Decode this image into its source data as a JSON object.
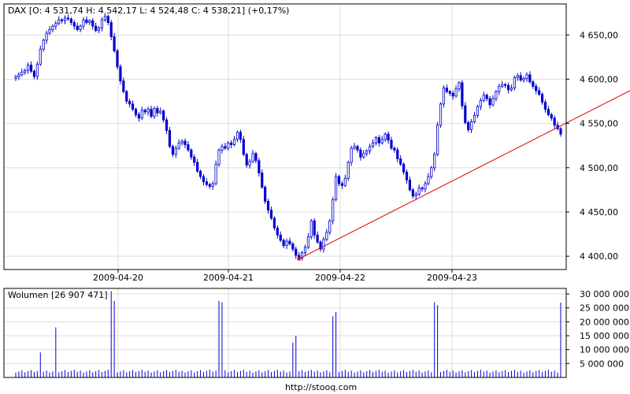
{
  "header": {
    "ohlc_label": "DAX [O: 4 531,74  H: 4 542,17  L: 4 524,48  C: 4 538,21] (+0,17%)"
  },
  "volume_header": {
    "label": "Wolumen [26 907 471]"
  },
  "footer": {
    "source": "http://stooq.com"
  },
  "colors": {
    "candle": "#0000cc",
    "trendline": "#dd0000",
    "grid": "#dcdcdc",
    "frame": "#000000",
    "volume": "#0000cc"
  },
  "chart_data": [
    {
      "type": "candlestick",
      "title": "DAX [O: 4 531,74  H: 4 542,17  L: 4 524,48  C: 4 538,21] (+0,17%)",
      "xlabel": "",
      "ylabel": "",
      "ylim": [
        4385,
        4685
      ],
      "grid": true,
      "y_ticks": [
        4400,
        4450,
        4500,
        4550,
        4600,
        4650
      ],
      "y_tick_labels": [
        "4 400,00",
        "4 450,00",
        "4 500,00",
        "4 550,00",
        "4 600,00",
        "4 650,00"
      ],
      "x_ticks": [
        "2009-04-20",
        "2009-04-21",
        "2009-04-22",
        "2009-04-23"
      ],
      "series_close": [
        4603,
        4605,
        4608,
        4610,
        4616,
        4609,
        4603,
        4617,
        4634,
        4644,
        4652,
        4656,
        4660,
        4663,
        4667,
        4666,
        4669,
        4668,
        4664,
        4660,
        4656,
        4660,
        4667,
        4664,
        4666,
        4660,
        4655,
        4658,
        4667,
        4671,
        4664,
        4648,
        4632,
        4614,
        4598,
        4586,
        4575,
        4572,
        4566,
        4560,
        4556,
        4565,
        4563,
        4566,
        4558,
        4567,
        4562,
        4564,
        4554,
        4542,
        4524,
        4515,
        4522,
        4528,
        4530,
        4526,
        4520,
        4512,
        4506,
        4496,
        4490,
        4484,
        4481,
        4479,
        4482,
        4504,
        4520,
        4524,
        4522,
        4528,
        4526,
        4532,
        4540,
        4532,
        4515,
        4503,
        4507,
        4516,
        4508,
        4494,
        4478,
        4462,
        4452,
        4443,
        4432,
        4424,
        4418,
        4412,
        4417,
        4414,
        4408,
        4401,
        4398,
        4404,
        4410,
        4422,
        4440,
        4424,
        4416,
        4408,
        4419,
        4427,
        4440,
        4464,
        4490,
        4482,
        4480,
        4488,
        4506,
        4522,
        4524,
        4520,
        4512,
        4516,
        4519,
        4524,
        4528,
        4534,
        4528,
        4532,
        4538,
        4531,
        4522,
        4520,
        4510,
        4504,
        4495,
        4486,
        4475,
        4468,
        4470,
        4477,
        4476,
        4482,
        4490,
        4500,
        4515,
        4548,
        4572,
        4590,
        4586,
        4584,
        4581,
        4589,
        4596,
        4570,
        4551,
        4543,
        4552,
        4559,
        4569,
        4576,
        4582,
        4578,
        4571,
        4578,
        4586,
        4592,
        4594,
        4593,
        4588,
        4590,
        4602,
        4604,
        4599,
        4601,
        4605,
        4597,
        4592,
        4587,
        4583,
        4574,
        4566,
        4560,
        4556,
        4548,
        4544,
        4538
      ],
      "volume": {
        "title": "Wolumen [26 907 471]",
        "ylim": [
          0,
          32000000
        ],
        "y_ticks": [
          5000000,
          10000000,
          15000000,
          20000000,
          25000000,
          30000000
        ],
        "y_tick_labels": [
          "5 000 000",
          "10 000 000",
          "15 000 000",
          "20 000 000",
          "25 000 000",
          "30 000 000"
        ],
        "spikes": [
          {
            "index": 8,
            "value": 9000000
          },
          {
            "index": 13,
            "value": 18000000
          },
          {
            "index": 31,
            "value": 31000000
          },
          {
            "index": 32,
            "value": 27500000
          },
          {
            "index": 66,
            "value": 27500000
          },
          {
            "index": 67,
            "value": 27000000
          },
          {
            "index": 90,
            "value": 12500000
          },
          {
            "index": 91,
            "value": 15000000
          },
          {
            "index": 103,
            "value": 22000000
          },
          {
            "index": 104,
            "value": 23500000
          },
          {
            "index": 136,
            "value": 27000000
          },
          {
            "index": 137,
            "value": 26000000
          },
          {
            "index": 177,
            "value": 26907471
          }
        ],
        "baseline_level": 2200000
      },
      "trendline": {
        "from": {
          "index": 92,
          "value": 4397
        },
        "to": {
          "index": 178,
          "value": 4549
        }
      }
    }
  ]
}
